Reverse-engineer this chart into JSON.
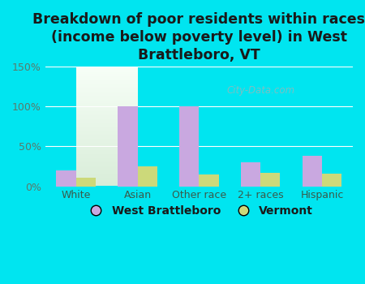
{
  "title": "Breakdown of poor residents within races\n(income below poverty level) in West\nBrattleboro, VT",
  "categories": [
    "White",
    "Asian",
    "Other race",
    "2+ races",
    "Hispanic"
  ],
  "west_brattleboro": [
    20,
    100,
    100,
    30,
    38
  ],
  "vermont": [
    11,
    25,
    15,
    17,
    16
  ],
  "bar_color_wb": "#c9a8e0",
  "bar_color_vt": "#ccd97a",
  "ylim": [
    0,
    150
  ],
  "yticks": [
    0,
    50,
    100,
    150
  ],
  "ytick_labels": [
    "0%",
    "50%",
    "100%",
    "150%"
  ],
  "bg_outer": "#00e5f0",
  "legend_wb": "West Brattleboro",
  "legend_vt": "Vermont",
  "title_fontsize": 12.5,
  "tick_fontsize": 9,
  "legend_fontsize": 10,
  "bar_width": 0.32,
  "watermark": "City-Data.com",
  "tick_color": "#5a7a6a",
  "label_color": "#3a5a4a"
}
